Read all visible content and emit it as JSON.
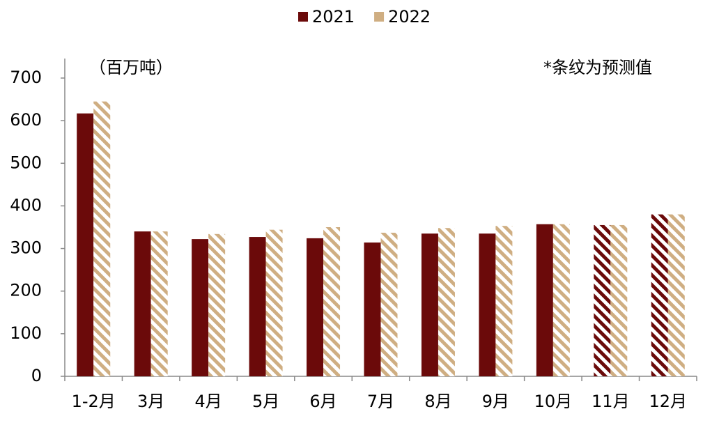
{
  "chart_data": {
    "type": "bar",
    "unit_label": "（百万吨）",
    "annotation": "*条纹为预测值",
    "categories": [
      "1-2月",
      "3月",
      "4月",
      "5月",
      "6月",
      "7月",
      "8月",
      "9月",
      "10月",
      "11月",
      "12月"
    ],
    "series": [
      {
        "name": "2021",
        "color": "#6b0a0a",
        "values": [
          617,
          340,
          322,
          327,
          324,
          314,
          335,
          335,
          357,
          355,
          380
        ],
        "hatched": [
          false,
          false,
          false,
          false,
          false,
          false,
          false,
          false,
          false,
          true,
          true
        ]
      },
      {
        "name": "2022",
        "color": "#cfae82",
        "values": [
          645,
          340,
          334,
          344,
          350,
          337,
          348,
          353,
          357,
          355,
          380
        ],
        "hatched": [
          true,
          true,
          true,
          true,
          true,
          true,
          true,
          true,
          true,
          true,
          true
        ]
      }
    ],
    "ylim": [
      0,
      700
    ],
    "yticks": [
      0,
      100,
      200,
      300,
      400,
      500,
      600,
      700
    ],
    "grid": false,
    "legend": "top"
  }
}
